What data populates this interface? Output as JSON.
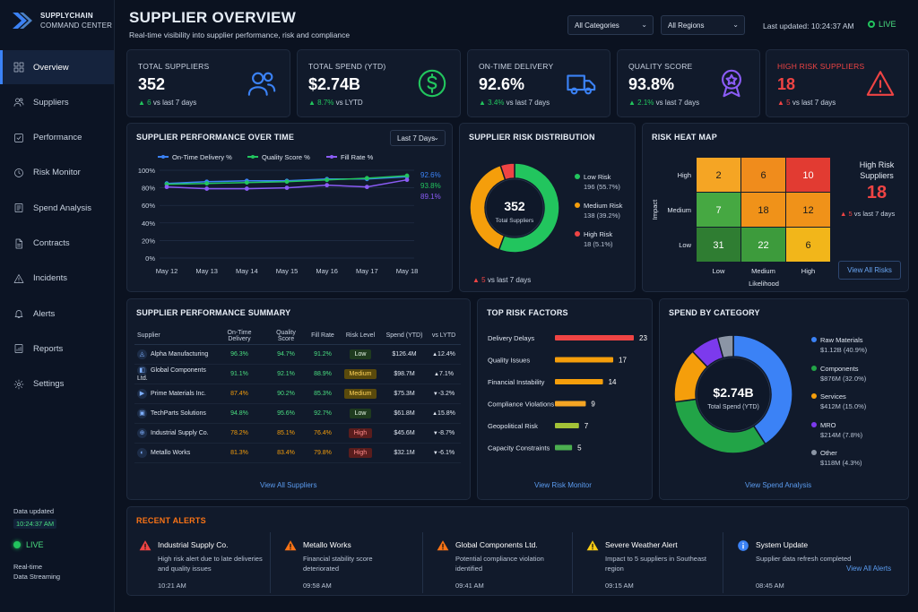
{
  "brand": {
    "line1": "SUPPLYCHAIN",
    "line2": "COMMAND CENTER"
  },
  "nav": [
    {
      "label": "Overview",
      "icon": "grid-icon",
      "active": true
    },
    {
      "label": "Suppliers",
      "icon": "users-icon"
    },
    {
      "label": "Performance",
      "icon": "check-square-icon"
    },
    {
      "label": "Risk Monitor",
      "icon": "clock-icon"
    },
    {
      "label": "Spend Analysis",
      "icon": "document-icon"
    },
    {
      "label": "Contracts",
      "icon": "file-icon"
    },
    {
      "label": "Incidents",
      "icon": "warning-icon"
    },
    {
      "label": "Alerts",
      "icon": "bell-icon"
    },
    {
      "label": "Reports",
      "icon": "report-icon"
    },
    {
      "label": "Settings",
      "icon": "gear-icon"
    }
  ],
  "sidebar_footer": {
    "data_updated_label": "Data updated",
    "data_updated_time": "10:24:37 AM",
    "live": "LIVE",
    "stream_line1": "Real-time",
    "stream_line2": "Data Streaming"
  },
  "header": {
    "title": "SUPPLIER OVERVIEW",
    "subtitle": "Real-time visibility into supplier performance, risk and compliance",
    "category_filter": "All Categories",
    "region_filter": "All Regions",
    "last_updated": "Last updated: 10:24:37 AM",
    "live": "LIVE"
  },
  "kpis": [
    {
      "label": "TOTAL SUPPLIERS",
      "value": "352",
      "delta": "6",
      "delta_text": "vs last 7 days",
      "icon": "users-icon",
      "color": "#3b82f6"
    },
    {
      "label": "TOTAL SPEND (YTD)",
      "value": "$2.74B",
      "delta": "8.7%",
      "delta_text": "vs LYTD",
      "icon": "dollar-icon",
      "color": "#22c55e"
    },
    {
      "label": "ON-TIME DELIVERY",
      "value": "92.6%",
      "delta": "3.4%",
      "delta_text": "vs last 7 days",
      "icon": "truck-icon",
      "color": "#3b82f6"
    },
    {
      "label": "QUALITY SCORE",
      "value": "93.8%",
      "delta": "2.1%",
      "delta_text": "vs last 7 days",
      "icon": "award-icon",
      "color": "#8b5cf6"
    },
    {
      "label": "HIGH RISK SUPPLIERS",
      "value": "18",
      "delta": "5",
      "delta_text": "vs last 7 days",
      "icon": "warning-icon",
      "color": "#ef4444"
    }
  ],
  "performance": {
    "title": "SUPPLIER PERFORMANCE OVER TIME",
    "range": "Last 7 Days",
    "end_labels": [
      "92.6%",
      "93.8%",
      "89.1%"
    ]
  },
  "chart_data": [
    {
      "type": "line",
      "title": "SUPPLIER PERFORMANCE OVER TIME",
      "x": [
        "May 12",
        "May 13",
        "May 14",
        "May 15",
        "May 16",
        "May 17",
        "May 18"
      ],
      "ylim": [
        0,
        100
      ],
      "yticks": [
        "100%",
        "80%",
        "60%",
        "40%",
        "20%",
        "0%"
      ],
      "grid": true,
      "legend": "top",
      "series": [
        {
          "name": "On-Time Delivery %",
          "color": "#3b82f6",
          "values": [
            85,
            87,
            88,
            88,
            90,
            90,
            92.6
          ]
        },
        {
          "name": "Quality Score %",
          "color": "#22c55e",
          "values": [
            84,
            85,
            86,
            87,
            89,
            91,
            93.8
          ]
        },
        {
          "name": "Fill Rate %",
          "color": "#8b5cf6",
          "values": [
            81,
            79,
            79,
            80,
            83,
            81,
            89.1
          ]
        }
      ]
    },
    {
      "type": "pie",
      "title": "SUPPLIER RISK DISTRIBUTION",
      "center_value": "352",
      "center_label": "Total Suppliers",
      "slices": [
        {
          "name": "Low Risk",
          "value": 196,
          "detail": "196 (55.7%)",
          "color": "#22c55e"
        },
        {
          "name": "Medium Risk",
          "value": 138,
          "detail": "138 (39.2%)",
          "color": "#f59e0b"
        },
        {
          "name": "High Risk",
          "value": 18,
          "detail": "18 (5.1%)",
          "color": "#ef4444"
        }
      ],
      "footer_delta": "5",
      "footer_text": "vs last 7 days"
    },
    {
      "type": "heatmap",
      "title": "RISK HEAT MAP",
      "ylabel": "Impact",
      "xlabel": "Likelihood",
      "rows": [
        "High",
        "Medium",
        "Low"
      ],
      "cols": [
        "Low",
        "Medium",
        "High"
      ],
      "values": [
        [
          2,
          6,
          10
        ],
        [
          7,
          18,
          12
        ],
        [
          31,
          22,
          6
        ]
      ],
      "colors": [
        [
          "#f5a524",
          "#f08c1c",
          "#e23b32"
        ],
        [
          "#46a842",
          "#f09219",
          "#f09219"
        ],
        [
          "#2f7d32",
          "#3d9b3c",
          "#f2b61a"
        ]
      ]
    },
    {
      "type": "bar",
      "title": "TOP RISK FACTORS",
      "categories": [
        "Delivery Delays",
        "Quality Issues",
        "Financial Instability",
        "Compliance Violations",
        "Geopolitical Risk",
        "Capacity Constraints"
      ],
      "values": [
        23,
        17,
        14,
        9,
        7,
        5
      ],
      "colors": [
        "#ef4444",
        "#f59e0b",
        "#f59e0b",
        "#f5a524",
        "#a3c237",
        "#4caf50"
      ]
    },
    {
      "type": "pie",
      "title": "SPEND BY CATEGORY",
      "center_value": "$2.74B",
      "center_label": "Total Spend (YTD)",
      "slices": [
        {
          "name": "Raw Materials",
          "value": 40.9,
          "detail": "$1.12B (40.9%)",
          "color": "#3b82f6"
        },
        {
          "name": "Components",
          "value": 32.0,
          "detail": "$876M (32.0%)",
          "color": "#22a447"
        },
        {
          "name": "Services",
          "value": 15.0,
          "detail": "$412M (15.0%)",
          "color": "#f59e0b"
        },
        {
          "name": "MRO",
          "value": 7.8,
          "detail": "$214M (7.8%)",
          "color": "#7c3aed"
        },
        {
          "name": "Other",
          "value": 4.3,
          "detail": "$118M (4.3%)",
          "color": "#8b95a5"
        }
      ]
    }
  ],
  "heat": {
    "side_title_1": "High Risk",
    "side_title_2": "Suppliers",
    "side_value": "18",
    "side_delta": "5",
    "side_delta_text": "vs last 7 days",
    "button": "View All Risks"
  },
  "summary": {
    "title": "SUPPLIER PERFORMANCE SUMMARY",
    "columns": [
      "Supplier",
      "On-Time Delivery",
      "Quality Score",
      "Fill Rate",
      "Risk Level",
      "Spend (YTD)",
      "vs LYTD"
    ],
    "rows": [
      {
        "name": "Alpha Manufacturing",
        "otd": "96.3%",
        "qs": "94.7%",
        "fr": "91.2%",
        "risk": "Low",
        "spend": "$126.4M",
        "vs": "12.4%",
        "dir": "up",
        "otd_c": "#4ade80",
        "qs_c": "#4ade80",
        "fr_c": "#4ade80"
      },
      {
        "name": "Global Components Ltd.",
        "otd": "91.1%",
        "qs": "92.1%",
        "fr": "88.9%",
        "risk": "Medium",
        "spend": "$98.7M",
        "vs": "7.1%",
        "dir": "up",
        "otd_c": "#4ade80",
        "qs_c": "#4ade80",
        "fr_c": "#4ade80"
      },
      {
        "name": "Prime Materials Inc.",
        "otd": "87.4%",
        "qs": "90.2%",
        "fr": "85.3%",
        "risk": "Medium",
        "spend": "$75.3M",
        "vs": "-3.2%",
        "dir": "down",
        "otd_c": "#f59e0b",
        "qs_c": "#4ade80",
        "fr_c": "#4ade80"
      },
      {
        "name": "TechParts Solutions",
        "otd": "94.8%",
        "qs": "95.6%",
        "fr": "92.7%",
        "risk": "Low",
        "spend": "$61.8M",
        "vs": "15.8%",
        "dir": "up",
        "otd_c": "#4ade80",
        "qs_c": "#4ade80",
        "fr_c": "#4ade80"
      },
      {
        "name": "Industrial Supply Co.",
        "otd": "78.2%",
        "qs": "85.1%",
        "fr": "76.4%",
        "risk": "High",
        "spend": "$45.6M",
        "vs": "-8.7%",
        "dir": "down",
        "otd_c": "#f59e0b",
        "qs_c": "#f59e0b",
        "fr_c": "#f59e0b"
      },
      {
        "name": "Metallo Works",
        "otd": "81.3%",
        "qs": "83.4%",
        "fr": "79.8%",
        "risk": "High",
        "spend": "$32.1M",
        "vs": "-6.1%",
        "dir": "down",
        "otd_c": "#f59e0b",
        "qs_c": "#f59e0b",
        "fr_c": "#f59e0b"
      }
    ],
    "link": "View All Suppliers"
  },
  "risk_factors": {
    "title": "TOP RISK FACTORS",
    "link": "View Risk Monitor"
  },
  "risk_dist": {
    "title": "SUPPLIER RISK DISTRIBUTION"
  },
  "spend": {
    "title": "SPEND BY CATEGORY",
    "link": "View Spend Analysis"
  },
  "alerts": {
    "title": "RECENT ALERTS",
    "items": [
      {
        "title": "Industrial Supply Co.",
        "desc": "High risk alert due to late deliveries and quality issues",
        "time": "10:21 AM",
        "icon": "warning-icon",
        "color": "#ef4444"
      },
      {
        "title": "Metallo Works",
        "desc": "Financial stability score deteriorated",
        "time": "09:58 AM",
        "icon": "warning-icon",
        "color": "#f97316"
      },
      {
        "title": "Global Components Ltd.",
        "desc": "Potential compliance violation identified",
        "time": "09:41 AM",
        "icon": "warning-icon",
        "color": "#f97316"
      },
      {
        "title": "Severe Weather Alert",
        "desc": "Impact to 5 suppliers in Southeast region",
        "time": "09:15 AM",
        "icon": "warning-icon",
        "color": "#facc15"
      },
      {
        "title": "System Update",
        "desc": "Supplier data refresh completed",
        "time": "08:45 AM",
        "icon": "info-icon",
        "color": "#3b82f6"
      }
    ],
    "link": "View All Alerts"
  }
}
